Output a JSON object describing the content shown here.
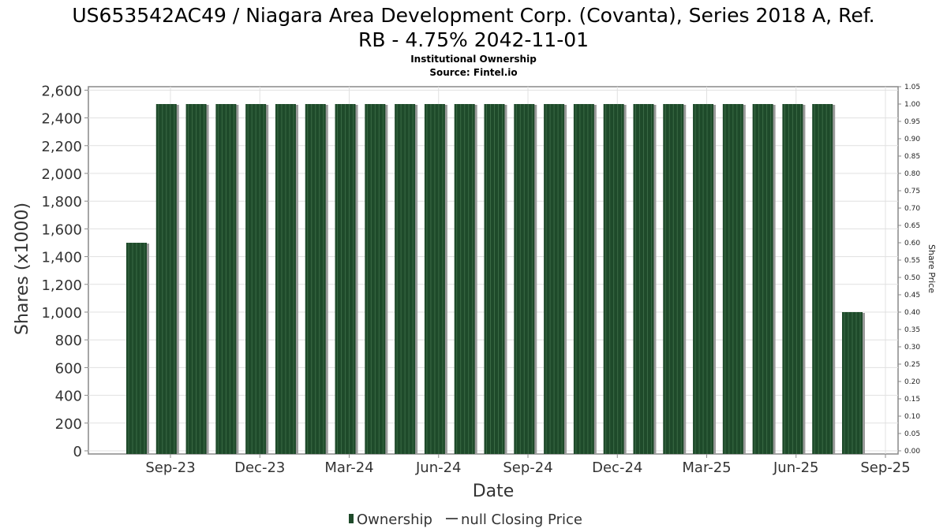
{
  "chart_data": {
    "type": "bar",
    "title": "US653542AC49 / Niagara Area Development Corp. (Covanta), Series 2018 A, Ref. RB - 4.75% 2042-11-01",
    "title_lines": [
      "US653542AC49 / Niagara Area Development Corp. (Covanta), Series 2018 A, Ref.",
      "RB - 4.75% 2042-11-01"
    ],
    "subtitle": "Institutional Ownership",
    "source": "Source: Fintel.io",
    "xlabel": "Date",
    "ylabel": "Shares (x1000)",
    "y2label": "Share Price",
    "ylim": [
      0,
      2625
    ],
    "y2lim": [
      0,
      1.05
    ],
    "yticks": [
      "0",
      "200",
      "400",
      "600",
      "800",
      "1,000",
      "1,200",
      "1,400",
      "1,600",
      "1,800",
      "2,000",
      "2,200",
      "2,400",
      "2,600"
    ],
    "y2ticks": [
      "0.00",
      "0.05",
      "0.10",
      "0.15",
      "0.20",
      "0.25",
      "0.30",
      "0.35",
      "0.40",
      "0.45",
      "0.50",
      "0.55",
      "0.60",
      "0.65",
      "0.70",
      "0.75",
      "0.80",
      "0.85",
      "0.90",
      "0.95",
      "1.00",
      "1.05"
    ],
    "xticks": [
      "Sep-23",
      "Dec-23",
      "Mar-24",
      "Jun-24",
      "Sep-24",
      "Dec-24",
      "Mar-25",
      "Jun-25",
      "Sep-25"
    ],
    "values": [
      1500,
      2500,
      2500,
      2500,
      2500,
      2500,
      2500,
      2500,
      2500,
      2500,
      2500,
      2500,
      2500,
      2500,
      2500,
      2500,
      2500,
      2500,
      2500,
      2500,
      2500,
      2500,
      2500,
      2500,
      1000
    ],
    "series": [
      {
        "name": "Ownership",
        "color": "#1e4a2a"
      },
      {
        "name": "null Closing Price",
        "color": "#555555"
      }
    ],
    "legend": "bottom",
    "grid": true
  }
}
